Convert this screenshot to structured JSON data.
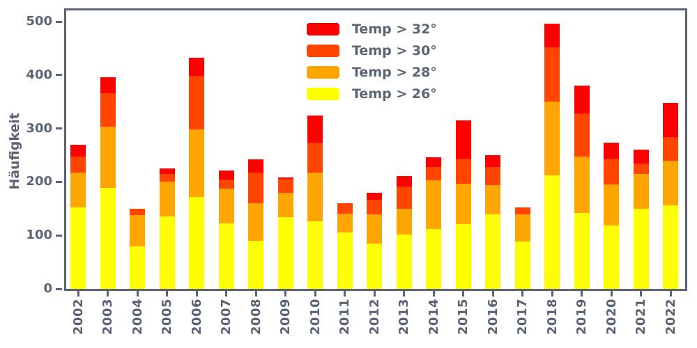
{
  "chart_data": {
    "type": "bar",
    "stacked": true,
    "title": "",
    "xlabel": "",
    "ylabel": "Häufigkeit",
    "ylim": [
      0,
      521
    ],
    "yticks": [
      0,
      100,
      200,
      300,
      400,
      500
    ],
    "grid": false,
    "legend_position": "upper center",
    "legend_order_top_to_bottom": [
      "Temp > 32°",
      "Temp > 30°",
      "Temp > 28°",
      "Temp > 26°"
    ],
    "axis_color": "#5a6474",
    "categories": [
      "2002",
      "2003",
      "2004",
      "2005",
      "2006",
      "2007",
      "2008",
      "2009",
      "2010",
      "2011",
      "2012",
      "2013",
      "2014",
      "2015",
      "2016",
      "2017",
      "2018",
      "2019",
      "2020",
      "2021",
      "2022"
    ],
    "series": [
      {
        "name": "Temp > 26°",
        "color": "#ffff00",
        "values": [
          152,
          189,
          80,
          136,
          172,
          122,
          90,
          134,
          127,
          105,
          85,
          101,
          112,
          121,
          140,
          89,
          212,
          142,
          118,
          150,
          156
        ]
      },
      {
        "name": "Temp > 28°",
        "color": "#ffa500",
        "values": [
          66,
          114,
          58,
          64,
          126,
          65,
          70,
          46,
          91,
          36,
          55,
          49,
          91,
          76,
          54,
          50,
          138,
          106,
          77,
          65,
          84
        ]
      },
      {
        "name": "Temp > 30°",
        "color": "#ff4500",
        "values": [
          29,
          63,
          12,
          15,
          100,
          18,
          57,
          26,
          56,
          19,
          27,
          42,
          25,
          46,
          34,
          13,
          102,
          80,
          48,
          19,
          44
        ]
      },
      {
        "name": "Temp > 32°",
        "color": "#ff0000",
        "values": [
          23,
          30,
          0,
          11,
          34,
          16,
          25,
          3,
          51,
          0,
          13,
          19,
          18,
          72,
          22,
          0,
          44,
          53,
          31,
          27,
          64
        ]
      }
    ],
    "stacked_totals": [
      270,
      396,
      150,
      226,
      432,
      221,
      242,
      209,
      325,
      160,
      180,
      211,
      246,
      315,
      250,
      152,
      496,
      381,
      274,
      261,
      348
    ]
  }
}
